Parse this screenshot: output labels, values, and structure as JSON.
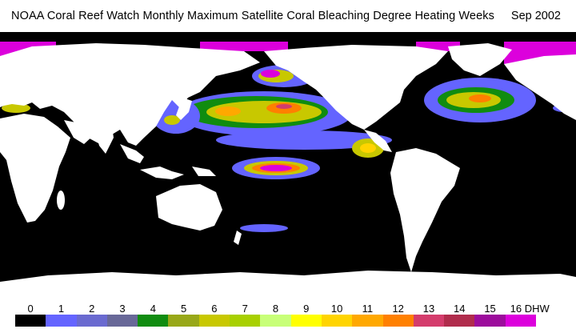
{
  "title": "NOAA Coral Reef Watch Monthly Maximum Satellite Coral Bleaching Degree Heating Weeks",
  "date": "Sep 2002",
  "colors": {
    "ocean": "#000000",
    "land": "#ffffff"
  },
  "legend": {
    "unit": "DHW",
    "labels": [
      "0",
      "1",
      "2",
      "3",
      "4",
      "5",
      "6",
      "7",
      "8",
      "9",
      "10",
      "11",
      "12",
      "13",
      "14",
      "15",
      "16 DHW"
    ],
    "colors": [
      "#000000",
      "#6464ff",
      "#6a6ad0",
      "#686898",
      "#108c10",
      "#98a818",
      "#c8c800",
      "#a8d000",
      "#c8ff78",
      "#ffff00",
      "#ffd400",
      "#ffa800",
      "#ff8000",
      "#d43c6c",
      "#b02c4c",
      "#9c0c9c",
      "#dc00dc"
    ]
  }
}
